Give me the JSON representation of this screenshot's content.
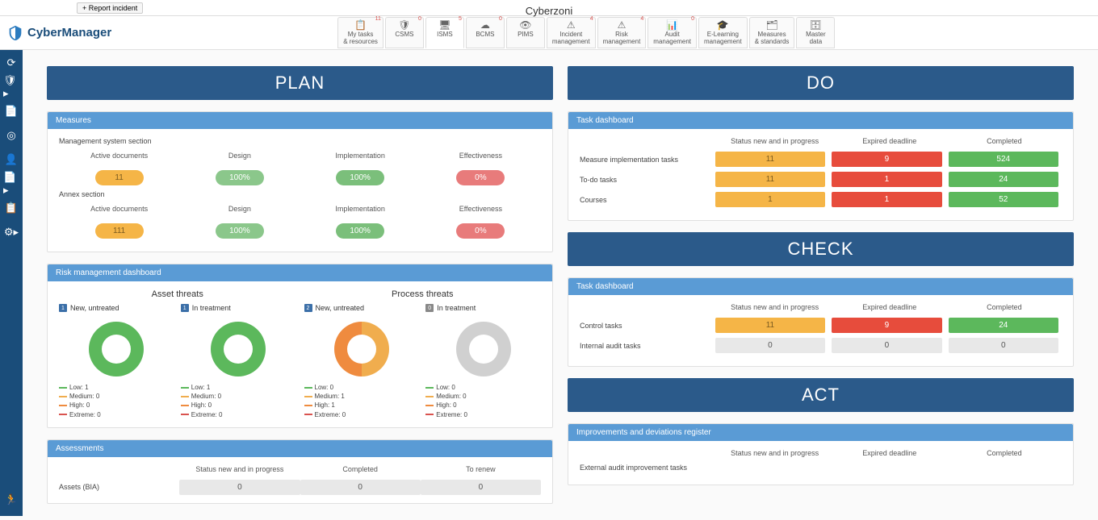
{
  "org_name": "Cyberzoni",
  "report_btn": "+ Report incident",
  "logo_text": "CyberManager",
  "nav_tabs": [
    {
      "label1": "My tasks",
      "label2": "& resources",
      "badge": "11",
      "icon": "📋"
    },
    {
      "label1": "CSMS",
      "label2": "",
      "badge": "0",
      "icon": "🛡"
    },
    {
      "label1": "ISMS",
      "label2": "",
      "badge": "5",
      "icon": "🖥",
      "active": true
    },
    {
      "label1": "BCMS",
      "label2": "",
      "badge": "0",
      "icon": "☁"
    },
    {
      "label1": "PIMS",
      "label2": "",
      "badge": "",
      "icon": "👁"
    },
    {
      "label1": "Incident",
      "label2": "management",
      "badge": "4",
      "icon": "⚠"
    },
    {
      "label1": "Risk",
      "label2": "management",
      "badge": "4",
      "icon": "⚠"
    },
    {
      "label1": "Audit",
      "label2": "management",
      "badge": "0",
      "icon": "📊"
    },
    {
      "label1": "E-Learning",
      "label2": "management",
      "badge": "",
      "icon": "🎓"
    },
    {
      "label1": "Measures",
      "label2": "& standards",
      "badge": "",
      "icon": "🗂"
    },
    {
      "label1": "Master",
      "label2": "data",
      "badge": "",
      "icon": "🗄"
    }
  ],
  "quadrants": {
    "plan": "PLAN",
    "do": "DO",
    "check": "CHECK",
    "act": "ACT"
  },
  "measures": {
    "title": "Measures",
    "section1": "Management system section",
    "section2": "Annex section",
    "cols": [
      "Active documents",
      "Design",
      "Implementation",
      "Effectiveness"
    ],
    "row1": [
      "11",
      "100%",
      "100%",
      "0%"
    ],
    "row2": [
      "111",
      "100%",
      "100%",
      "0%"
    ]
  },
  "risk": {
    "title": "Risk management dashboard",
    "asset_title": "Asset threats",
    "process_title": "Process threats",
    "new_untreated": "New, untreated",
    "in_treatment": "In treatment",
    "counts": {
      "asset_new": "1",
      "asset_treat": "1",
      "proc_new": "2",
      "proc_treat": "0"
    },
    "legends": {
      "asset_new": [
        "Low: 1",
        "Medium: 0",
        "High: 0",
        "Extreme: 0"
      ],
      "asset_treat": [
        "Low: 1",
        "Medium: 0",
        "High: 0",
        "Extreme: 0"
      ],
      "proc_new": [
        "Low: 0",
        "Medium: 1",
        "High: 1",
        "Extreme: 0"
      ],
      "proc_treat": [
        "Low: 0",
        "Medium: 0",
        "High: 0",
        "Extreme: 0"
      ]
    },
    "legend_colors": [
      "#5cb85c",
      "#f0ad4e",
      "#ef8b3f",
      "#d9534f"
    ],
    "donuts": {
      "asset_new": "#5cb85c",
      "asset_treat": "#5cb85c",
      "proc_new": "conic-gradient(#f0ad4e 0 50%, #ef8b3f 50% 100%)",
      "proc_treat": "#d0d0d0"
    }
  },
  "assessments": {
    "title": "Assessments",
    "cols": [
      "",
      "Status new and in progress",
      "Completed",
      "To renew"
    ],
    "row1_label": "Assets (BIA)",
    "row1": [
      "0",
      "0",
      "0"
    ]
  },
  "do_panel": {
    "title": "Task dashboard",
    "cols": [
      "Status new and in progress",
      "Expired deadline",
      "Completed"
    ],
    "rows": [
      {
        "label": "Measure implementation tasks",
        "vals": [
          "11",
          "9",
          "524"
        ]
      },
      {
        "label": "To-do tasks",
        "vals": [
          "11",
          "1",
          "24"
        ]
      },
      {
        "label": "Courses",
        "vals": [
          "1",
          "1",
          "52"
        ]
      }
    ]
  },
  "check_panel": {
    "title": "Task dashboard",
    "cols": [
      "Status new and in progress",
      "Expired deadline",
      "Completed"
    ],
    "rows": [
      {
        "label": "Control tasks",
        "vals": [
          "11",
          "9",
          "24"
        ],
        "styles": [
          "orange",
          "red",
          "green"
        ]
      },
      {
        "label": "Internal audit tasks",
        "vals": [
          "0",
          "0",
          "0"
        ],
        "styles": [
          "gray",
          "gray",
          "gray"
        ]
      }
    ]
  },
  "act_panel": {
    "title": "Improvements and deviations register",
    "cols": [
      "Status new and in progress",
      "Expired deadline",
      "Completed"
    ],
    "row_label": "External audit improvement tasks"
  }
}
